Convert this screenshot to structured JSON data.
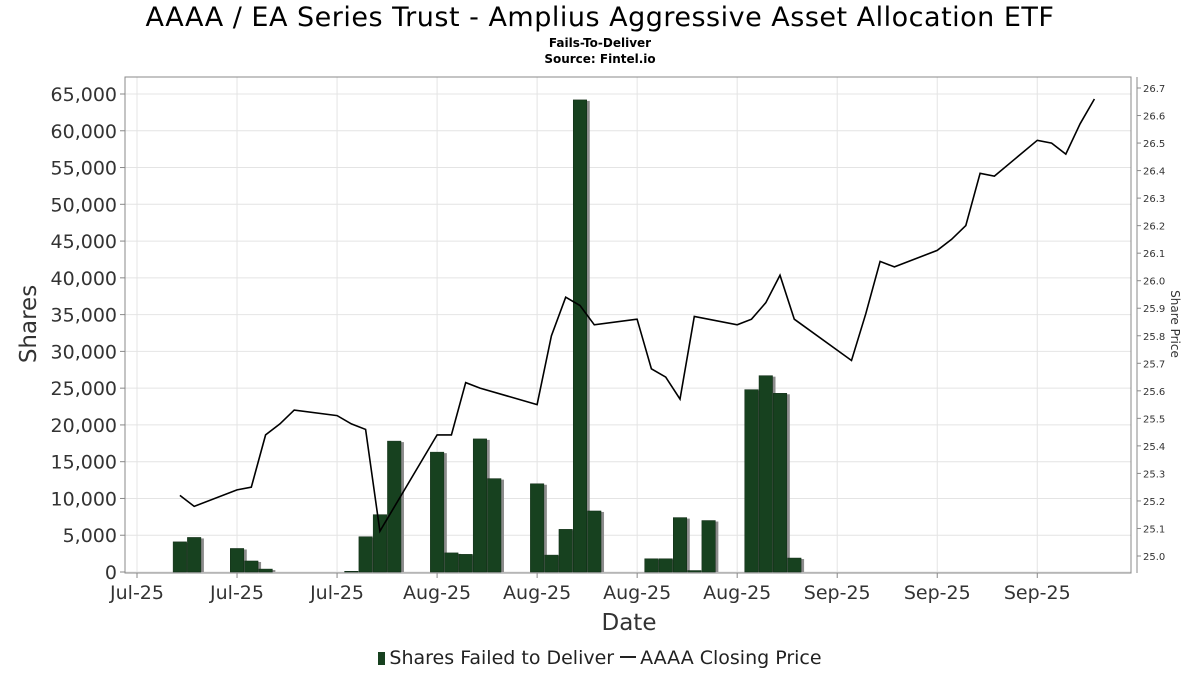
{
  "chart_data": {
    "type": "bar",
    "title": "AAAA / EA Series Trust - Amplius Aggressive Asset Allocation ETF",
    "subtitle": "Fails-To-Deliver",
    "source": "Source: Fintel.io",
    "xlabel": "Date",
    "ylabel": "Shares",
    "y2label": "Share Price",
    "ylim": [
      0,
      65000
    ],
    "y2lim": [
      24.97,
      26.7
    ],
    "grid": true,
    "legend_position": "bottom",
    "x_tick_labels": [
      "Jul-25",
      "Jul-25",
      "Jul-25",
      "Aug-25",
      "Aug-25",
      "Aug-25",
      "Aug-25",
      "Sep-25",
      "Sep-25",
      "Sep-25"
    ],
    "y_tick_labels": [
      "0",
      "5,000",
      "10,000",
      "15,000",
      "20,000",
      "25,000",
      "30,000",
      "35,000",
      "40,000",
      "45,000",
      "50,000",
      "55,000",
      "60,000",
      "65,000"
    ],
    "y2_tick_labels": [
      "25.0",
      "25.1",
      "25.2",
      "25.3",
      "25.4",
      "25.5",
      "25.6",
      "25.7",
      "25.8",
      "25.9",
      "26.0",
      "26.1",
      "26.2",
      "26.3",
      "26.4",
      "26.5",
      "26.6",
      "26.7"
    ],
    "x_tick_days": [
      0,
      7,
      14,
      21,
      28,
      35,
      42,
      49,
      56,
      63
    ],
    "series": [
      {
        "name": "Shares Failed to Deliver",
        "type": "bar",
        "color": "#17411f",
        "x": [
          3,
          4,
          7,
          8,
          9,
          15,
          16,
          17,
          18,
          21,
          22,
          23,
          24,
          25,
          28,
          29,
          30,
          31,
          32,
          36,
          37,
          38,
          39,
          40,
          43,
          44,
          45,
          46,
          47
        ],
        "values": [
          4100,
          4700,
          3200,
          1500,
          400,
          100,
          4800,
          7800,
          17800,
          16300,
          2600,
          2400,
          18100,
          12700,
          12000,
          2300,
          5800,
          64200,
          8300,
          1800,
          1800,
          7400,
          200,
          7000,
          24800,
          26700,
          24300,
          1900,
          0
        ]
      },
      {
        "name": "AAAA Closing Price",
        "type": "line",
        "color": "#000000",
        "x": [
          3,
          4,
          7,
          8,
          9,
          10,
          11,
          14,
          15,
          16,
          17,
          21,
          22,
          23,
          24,
          28,
          29,
          30,
          31,
          32,
          35,
          36,
          37,
          38,
          39,
          42,
          43,
          44,
          45,
          46,
          50,
          51,
          52,
          53,
          56,
          57,
          58,
          59,
          60,
          63,
          64,
          65,
          66,
          67
        ],
        "values": [
          25.22,
          25.18,
          25.24,
          25.25,
          25.44,
          25.48,
          25.53,
          25.51,
          25.48,
          25.46,
          25.09,
          25.44,
          25.44,
          25.63,
          25.61,
          25.55,
          25.8,
          25.94,
          25.91,
          25.84,
          25.86,
          25.68,
          25.65,
          25.57,
          25.87,
          25.84,
          25.86,
          25.92,
          26.02,
          25.86,
          25.71,
          25.88,
          26.07,
          26.05,
          26.11,
          26.15,
          26.2,
          26.39,
          26.38,
          26.51,
          26.5,
          26.46,
          26.57,
          26.66
        ]
      }
    ]
  },
  "legend": {
    "bars_label": "Shares Failed to Deliver",
    "line_label": "AAAA Closing Price"
  }
}
